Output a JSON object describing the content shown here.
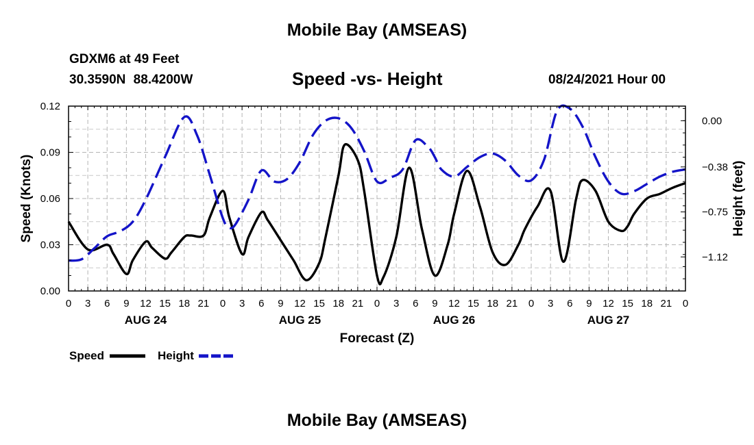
{
  "header": {
    "title": "Mobile Bay (AMSEAS)",
    "station": "GDXM6 at 49 Feet",
    "coords": "30.3590N  88.4200W",
    "subtitle": "Speed -vs- Height",
    "datetime": "08/24/2021 Hour 00"
  },
  "footer": {
    "title": "Mobile Bay (AMSEAS)"
  },
  "chart_data": {
    "type": "line",
    "title": "Speed -vs- Height",
    "xlabel": "Forecast (Z)",
    "ylabel": "Speed (Knots)",
    "ylabel_right": "Height (feet)",
    "xlim": [
      0,
      96
    ],
    "ylim": [
      0,
      0.12
    ],
    "ylim_right": [
      -1.4,
      0.12
    ],
    "grid": true,
    "x_tick_values": [
      0,
      3,
      6,
      9,
      12,
      15,
      18,
      21,
      24,
      27,
      30,
      33,
      36,
      39,
      42,
      45,
      48,
      51,
      54,
      57,
      60,
      63,
      66,
      69,
      72,
      75,
      78,
      81,
      84,
      87,
      90,
      93,
      96
    ],
    "x_tick_labels": [
      "0",
      "3",
      "6",
      "9",
      "12",
      "15",
      "18",
      "21",
      "0",
      "3",
      "6",
      "9",
      "12",
      "15",
      "18",
      "21",
      "0",
      "3",
      "6",
      "9",
      "12",
      "15",
      "18",
      "21",
      "0",
      "3",
      "6",
      "9",
      "12",
      "15",
      "18",
      "21",
      "0"
    ],
    "day_labels": [
      {
        "x": 12,
        "label": "AUG 24"
      },
      {
        "x": 36,
        "label": "AUG 25"
      },
      {
        "x": 60,
        "label": "AUG 26"
      },
      {
        "x": 84,
        "label": "AUG 27"
      }
    ],
    "y_ticks": [
      {
        "v": 0.0,
        "label": "0.00"
      },
      {
        "v": 0.03,
        "label": "0.03"
      },
      {
        "v": 0.06,
        "label": "0.06"
      },
      {
        "v": 0.09,
        "label": "0.09"
      },
      {
        "v": 0.12,
        "label": "0.12"
      }
    ],
    "y_ticks_right": [
      {
        "v": 0.0,
        "label": "0.00"
      },
      {
        "v": -0.38,
        "label": "−0.38"
      },
      {
        "v": -0.75,
        "label": "−0.75"
      },
      {
        "v": -1.12,
        "label": "−1.12"
      }
    ],
    "legend": [
      {
        "name": "Speed",
        "color": "#000000",
        "dash": false
      },
      {
        "name": "Height",
        "color": "#1414c8",
        "dash": true
      }
    ],
    "series": [
      {
        "name": "Speed",
        "axis": "left",
        "color": "#000000",
        "x": [
          0,
          3,
          6,
          7,
          9,
          10,
          12,
          13,
          15,
          16,
          18,
          19,
          21,
          22,
          24,
          25,
          27,
          28,
          30,
          31,
          33,
          35,
          37,
          39,
          40,
          42,
          43,
          45,
          46,
          48,
          49,
          51,
          53,
          55,
          57,
          59,
          60,
          62,
          64,
          66,
          68,
          70,
          71,
          73,
          75,
          77,
          79,
          80,
          82,
          84,
          86,
          87,
          88,
          90,
          92,
          94,
          96
        ],
        "values": [
          0.045,
          0.027,
          0.03,
          0.024,
          0.011,
          0.02,
          0.032,
          0.028,
          0.021,
          0.025,
          0.035,
          0.036,
          0.036,
          0.048,
          0.065,
          0.048,
          0.024,
          0.035,
          0.051,
          0.046,
          0.033,
          0.02,
          0.007,
          0.018,
          0.035,
          0.075,
          0.095,
          0.085,
          0.065,
          0.01,
          0.009,
          0.035,
          0.08,
          0.04,
          0.01,
          0.03,
          0.05,
          0.078,
          0.055,
          0.025,
          0.017,
          0.03,
          0.04,
          0.055,
          0.065,
          0.019,
          0.06,
          0.072,
          0.065,
          0.045,
          0.039,
          0.042,
          0.05,
          0.06,
          0.063,
          0.067,
          0.07
        ]
      },
      {
        "name": "Height",
        "axis": "right",
        "color": "#1414c8",
        "x": [
          0,
          2,
          4,
          6,
          8,
          10,
          12,
          15,
          18,
          20,
          22,
          24,
          25,
          26,
          28,
          30,
          32,
          34,
          36,
          38,
          40,
          42,
          44,
          46,
          48,
          50,
          52,
          54,
          56,
          57,
          58,
          60,
          62,
          64,
          66,
          68,
          70,
          72,
          74,
          76,
          78,
          80,
          82,
          84,
          86,
          88,
          90,
          92,
          94,
          96
        ],
        "values": [
          -1.15,
          -1.14,
          -1.05,
          -0.95,
          -0.91,
          -0.83,
          -0.65,
          -0.3,
          0.03,
          -0.12,
          -0.45,
          -0.8,
          -0.88,
          -0.85,
          -0.65,
          -0.41,
          -0.5,
          -0.48,
          -0.34,
          -0.12,
          0.0,
          0.02,
          -0.06,
          -0.25,
          -0.5,
          -0.47,
          -0.4,
          -0.16,
          -0.22,
          -0.3,
          -0.4,
          -0.46,
          -0.38,
          -0.3,
          -0.27,
          -0.33,
          -0.45,
          -0.49,
          -0.32,
          0.08,
          0.1,
          -0.05,
          -0.3,
          -0.5,
          -0.6,
          -0.58,
          -0.52,
          -0.46,
          -0.42,
          -0.4
        ]
      }
    ]
  }
}
